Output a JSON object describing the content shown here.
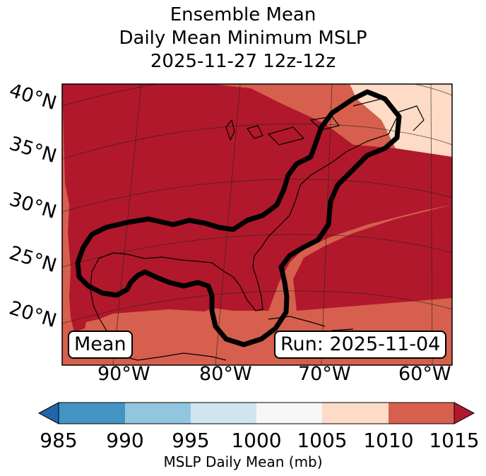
{
  "title": {
    "line1": "Ensemble Mean",
    "line2": "Daily Mean Minimum MSLP",
    "line3": "2025-11-27 12z-12z"
  },
  "map": {
    "lat_labels": [
      "40°N",
      "35°N",
      "30°N",
      "25°N",
      "20°N"
    ],
    "lon_labels": [
      "90°W",
      "80°W",
      "70°W",
      "60°W"
    ],
    "mean_label": "Mean",
    "run_label": "Run: 2025-11-04",
    "pressure_bands_mb": [
      "1005-1010",
      "1010-1015",
      ">1015"
    ],
    "outline_color": "#000000"
  },
  "colorbar": {
    "label": "MSLP Daily Mean (mb)",
    "ticks": [
      "985",
      "990",
      "995",
      "1000",
      "1005",
      "1010",
      "1015"
    ],
    "colors": [
      "#2166ac",
      "#4393c3",
      "#92c5de",
      "#d1e5f0",
      "#f7f7f7",
      "#fddbc7",
      "#d6604d",
      "#b2182b"
    ]
  }
}
